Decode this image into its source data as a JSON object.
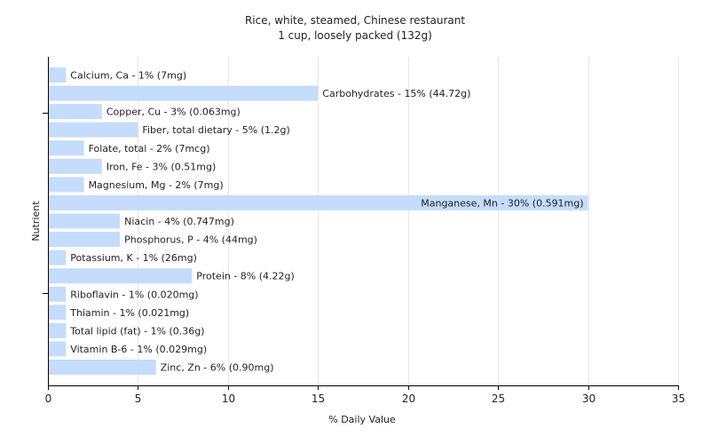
{
  "chart_data": {
    "type": "bar",
    "orientation": "horizontal",
    "title": "Rice, white, steamed, Chinese restaurant",
    "subtitle": "1 cup, loosely packed (132g)",
    "xlabel": "% Daily Value",
    "ylabel": "Nutrient",
    "xlim": [
      0,
      35
    ],
    "xticks": [
      0,
      5,
      10,
      15,
      20,
      25,
      30,
      35
    ],
    "grid": "vertical",
    "bar_color": "#c5dcfc",
    "categories": [
      "Calcium, Ca",
      "Carbohydrates",
      "Copper, Cu",
      "Fiber, total dietary",
      "Folate, total",
      "Iron, Fe",
      "Magnesium, Mg",
      "Manganese, Mn",
      "Niacin",
      "Phosphorus, P",
      "Potassium, K",
      "Protein",
      "Riboflavin",
      "Thiamin",
      "Total lipid (fat)",
      "Vitamin B-6",
      "Zinc, Zn"
    ],
    "values": [
      1,
      15,
      3,
      5,
      2,
      3,
      2,
      30,
      4,
      4,
      1,
      8,
      1,
      1,
      1,
      1,
      6
    ],
    "labels": [
      "Calcium, Ca - 1% (7mg)",
      "Carbohydrates - 15% (44.72g)",
      "Copper, Cu - 3% (0.063mg)",
      "Fiber, total dietary - 5% (1.2g)",
      "Folate, total - 2% (7mcg)",
      "Iron, Fe - 3% (0.51mg)",
      "Magnesium, Mg - 2% (7mg)",
      "Manganese, Mn - 30% (0.591mg)",
      "Niacin - 4% (0.747mg)",
      "Phosphorus, P - 4% (44mg)",
      "Potassium, K - 1% (26mg)",
      "Protein - 8% (4.22g)",
      "Riboflavin - 1% (0.020mg)",
      "Thiamin - 1% (0.021mg)",
      "Total lipid (fat) - 1% (0.36g)",
      "Vitamin B-6 - 1% (0.029mg)",
      "Zinc, Zn - 6% (0.90mg)"
    ]
  }
}
